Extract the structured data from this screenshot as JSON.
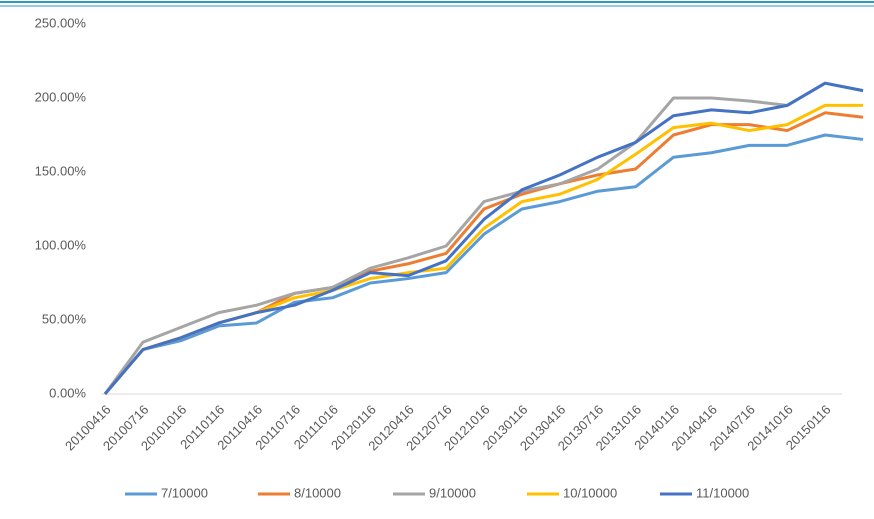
{
  "chart_data": {
    "type": "line",
    "categories": [
      "20100416",
      "20100716",
      "20101016",
      "20110116",
      "20110416",
      "20110716",
      "20111016",
      "20120116",
      "20120416",
      "20120716",
      "20121016",
      "20130116",
      "20130416",
      "20130716",
      "20131016",
      "20140116",
      "20140416",
      "20140716",
      "20141016",
      "20150116",
      null
    ],
    "series": [
      {
        "name": "7/10000",
        "color": "#5b9bd5",
        "values": [
          0,
          30,
          36,
          46,
          48,
          62,
          65,
          75,
          78,
          82,
          108,
          125,
          130,
          137,
          140,
          160,
          163,
          168,
          168,
          175,
          172
        ]
      },
      {
        "name": "8/10000",
        "color": "#ed7d31",
        "values": [
          0,
          30,
          38,
          48,
          55,
          68,
          72,
          83,
          88,
          95,
          125,
          135,
          142,
          148,
          152,
          175,
          182,
          182,
          178,
          190,
          187
        ]
      },
      {
        "name": "9/10000",
        "color": "#a5a5a5",
        "values": [
          0,
          35,
          45,
          55,
          60,
          68,
          72,
          85,
          92,
          100,
          130,
          137,
          142,
          152,
          170,
          200,
          200,
          198,
          195,
          210,
          205
        ]
      },
      {
        "name": "10/10000",
        "color": "#ffc000",
        "values": [
          0,
          30,
          38,
          48,
          55,
          65,
          70,
          78,
          82,
          85,
          112,
          130,
          135,
          145,
          162,
          180,
          183,
          178,
          182,
          195,
          195
        ]
      },
      {
        "name": "11/10000",
        "color": "#4472c4",
        "values": [
          0,
          30,
          38,
          48,
          55,
          60,
          70,
          82,
          80,
          90,
          118,
          138,
          148,
          160,
          170,
          188,
          192,
          190,
          195,
          210,
          205
        ]
      }
    ],
    "ylim": [
      0,
      250
    ],
    "yticks": [
      {
        "value": 0,
        "label": "0.00%"
      },
      {
        "value": 50,
        "label": "50.00%"
      },
      {
        "value": 100,
        "label": "100.00%"
      },
      {
        "value": 150,
        "label": "150.00%"
      },
      {
        "value": 200,
        "label": "200.00%"
      },
      {
        "value": 250,
        "label": "250.00%"
      }
    ],
    "legend": "bottom"
  }
}
